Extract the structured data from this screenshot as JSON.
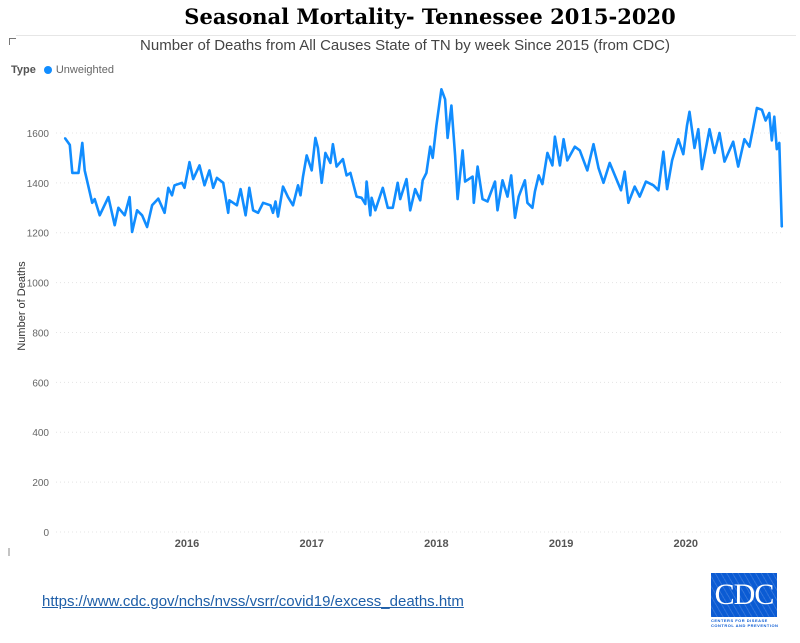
{
  "title": "Seasonal Mortality- Tennessee 2015-2020",
  "source_link": "https://www.cdc.gov/nchs/nvss/vsrr/covid19/excess_deaths.htm",
  "logo": {
    "text": "CDC",
    "subtext": "CENTERS FOR DISEASE CONTROL AND PREVENTION"
  },
  "colors": {
    "series": "#118DFF",
    "grid": "#e8e8e8",
    "logo": "#0b5bd3"
  },
  "chart_data": {
    "type": "line",
    "title": "Number of Deaths from All Causes State of TN by week Since 2015 (from CDC)",
    "legend": {
      "label": "Type",
      "placement": "top-left",
      "entries": [
        "Unweighted"
      ]
    },
    "xlabel": "",
    "ylabel": "Number of Deaths",
    "xlim": [
      2015.0,
      2020.8
    ],
    "ylim": [
      0,
      1800
    ],
    "x_ticks": [
      "2016",
      "2017",
      "2018",
      "2019",
      "2020"
    ],
    "y_ticks": [
      0,
      200,
      400,
      600,
      800,
      1000,
      1200,
      1400,
      1600
    ],
    "grid": true,
    "series": [
      {
        "name": "Unweighted",
        "x": [
          2015.02,
          2015.06,
          2015.08,
          2015.13,
          2015.16,
          2015.18,
          2015.24,
          2015.26,
          2015.3,
          2015.37,
          2015.42,
          2015.45,
          2015.5,
          2015.54,
          2015.56,
          2015.6,
          2015.64,
          2015.68,
          2015.72,
          2015.77,
          2015.82,
          2015.85,
          2015.88,
          2015.9,
          2015.96,
          2015.98,
          2016.02,
          2016.05,
          2016.1,
          2016.14,
          2016.18,
          2016.21,
          2016.24,
          2016.29,
          2016.33,
          2016.34,
          2016.4,
          2016.43,
          2016.47,
          2016.5,
          2016.53,
          2016.57,
          2016.61,
          2016.67,
          2016.69,
          2016.71,
          2016.73,
          2016.77,
          2016.81,
          2016.85,
          2016.89,
          2016.91,
          2016.93,
          2016.96,
          2017.0,
          2017.03,
          2017.05,
          2017.08,
          2017.11,
          2017.15,
          2017.17,
          2017.2,
          2017.25,
          2017.28,
          2017.31,
          2017.36,
          2017.4,
          2017.43,
          2017.44,
          2017.47,
          2017.48,
          2017.51,
          2017.57,
          2017.61,
          2017.65,
          2017.69,
          2017.71,
          2017.76,
          2017.79,
          2017.83,
          2017.87,
          2017.89,
          2017.92,
          2017.95,
          2017.97,
          2018.0,
          2018.04,
          2018.07,
          2018.09,
          2018.12,
          2018.15,
          2018.17,
          2018.21,
          2018.23,
          2018.29,
          2018.3,
          2018.33,
          2018.37,
          2018.41,
          2018.47,
          2018.49,
          2018.53,
          2018.57,
          2018.6,
          2018.63,
          2018.66,
          2018.71,
          2018.73,
          2018.77,
          2018.79,
          2018.82,
          2018.85,
          2018.89,
          2018.93,
          2018.95,
          2018.99,
          2019.02,
          2019.05,
          2019.11,
          2019.15,
          2019.21,
          2019.26,
          2019.3,
          2019.34,
          2019.39,
          2019.48,
          2019.51,
          2019.54,
          2019.59,
          2019.63,
          2019.68,
          2019.74,
          2019.78,
          2019.82,
          2019.85,
          2019.89,
          2019.94,
          2019.98,
          2020.01,
          2020.03,
          2020.07,
          2020.1,
          2020.13,
          2020.19,
          2020.23,
          2020.27,
          2020.31,
          2020.38,
          2020.42,
          2020.47,
          2020.51,
          2020.54,
          2020.57,
          2020.61,
          2020.64,
          2020.67,
          2020.69,
          2020.71,
          2020.73,
          2020.75,
          2020.77
        ],
        "y": [
          1580,
          1552,
          1440,
          1440,
          1560,
          1450,
          1320,
          1335,
          1270,
          1343,
          1230,
          1300,
          1270,
          1343,
          1203,
          1290,
          1270,
          1223,
          1310,
          1337,
          1280,
          1380,
          1350,
          1390,
          1400,
          1380,
          1483,
          1415,
          1470,
          1390,
          1450,
          1380,
          1420,
          1400,
          1280,
          1330,
          1310,
          1375,
          1270,
          1380,
          1290,
          1280,
          1320,
          1310,
          1280,
          1325,
          1265,
          1385,
          1343,
          1310,
          1390,
          1350,
          1425,
          1510,
          1450,
          1580,
          1540,
          1400,
          1520,
          1480,
          1555,
          1465,
          1495,
          1430,
          1440,
          1345,
          1340,
          1315,
          1405,
          1270,
          1340,
          1290,
          1380,
          1300,
          1300,
          1400,
          1335,
          1415,
          1290,
          1375,
          1330,
          1410,
          1440,
          1545,
          1500,
          1630,
          1775,
          1735,
          1580,
          1710,
          1510,
          1335,
          1530,
          1405,
          1425,
          1320,
          1465,
          1335,
          1325,
          1405,
          1290,
          1410,
          1345,
          1430,
          1260,
          1345,
          1410,
          1320,
          1300,
          1365,
          1430,
          1395,
          1520,
          1470,
          1585,
          1470,
          1575,
          1490,
          1545,
          1530,
          1450,
          1555,
          1460,
          1400,
          1480,
          1370,
          1445,
          1320,
          1385,
          1345,
          1405,
          1390,
          1370,
          1525,
          1375,
          1490,
          1575,
          1515,
          1630,
          1685,
          1540,
          1615,
          1455,
          1615,
          1520,
          1600,
          1485,
          1565,
          1465,
          1575,
          1545,
          1620,
          1700,
          1693,
          1650,
          1680,
          1570,
          1665,
          1535,
          1560,
          1223
        ]
      }
    ]
  }
}
